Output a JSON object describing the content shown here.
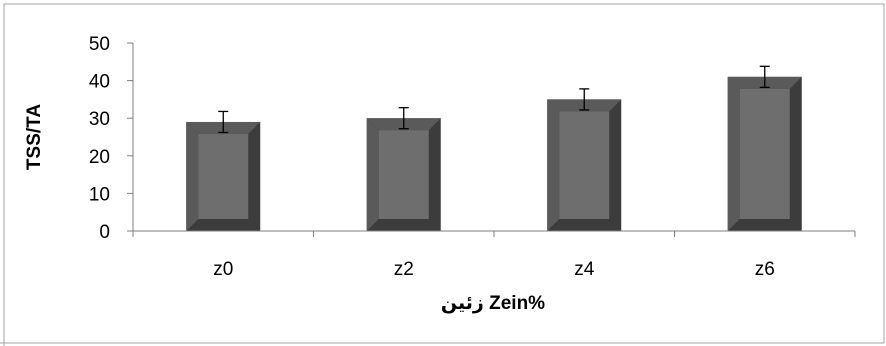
{
  "chart_data": {
    "type": "bar",
    "title": "",
    "xlabel": "زئين Zein%",
    "ylabel": "TSS/TA",
    "categories": [
      "z0",
      "z2",
      "z4",
      "z6"
    ],
    "values": [
      29,
      30,
      35,
      41
    ],
    "errors": [
      2.8,
      2.8,
      2.8,
      2.8
    ],
    "ylim": [
      0,
      50
    ],
    "yticks": [
      0,
      10,
      20,
      30,
      40,
      50
    ],
    "grid": false,
    "legend": "none",
    "colors": {
      "bar_face": "#6e6e6e",
      "bar_bevel_light": "#5a5a5a",
      "bar_bevel_dark": "#3c3c3c",
      "axis": "#7f7f7f",
      "frame": "#a6a6a6",
      "error_bar": "#000000"
    }
  }
}
